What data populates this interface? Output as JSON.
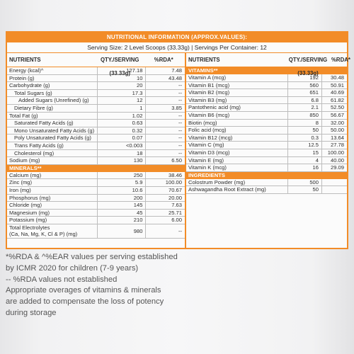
{
  "header": {
    "title": "NUTRITIONAL INFORMATION (APPROX.VALUES):",
    "serving": "Serving Size: 2 Level Scoops (33.33g) | Servings Per Container: 12"
  },
  "left": {
    "col_headers": [
      "NUTRIENTS",
      "QTY./SERVING (33.33g)",
      "%RDA*"
    ],
    "nutrients": [
      {
        "name": "Energy (kcal)^",
        "qty": "127.18",
        "rda": "7.48",
        "indent": 0
      },
      {
        "name": "Protein (g)",
        "qty": "10",
        "rda": "43.48",
        "indent": 0
      },
      {
        "name": "Carbohydrate (g)",
        "qty": "20",
        "rda": "--",
        "indent": 0
      },
      {
        "name": "Total Sugars (g)",
        "qty": "17.3",
        "rda": "--",
        "indent": 1
      },
      {
        "name": "Added Sugars (Unrefined) (g)",
        "qty": "12",
        "rda": "--",
        "indent": 2
      },
      {
        "name": "Dietary Fibre (g)",
        "qty": "1",
        "rda": "3.85",
        "indent": 1
      },
      {
        "name": "Total Fat (g)",
        "qty": "1.02",
        "rda": "--",
        "indent": 0
      },
      {
        "name": "Saturated Fatty Acids (g)",
        "qty": "0.63",
        "rda": "--",
        "indent": 1
      },
      {
        "name": "Mono Unsaturated Fatty Acids (g)",
        "qty": "0.32",
        "rda": "--",
        "indent": 1
      },
      {
        "name": "Poly Unsaturated Fatty Acids (g)",
        "qty": "0.07",
        "rda": "--",
        "indent": 1
      },
      {
        "name": "Trans Fatty Acids (g)",
        "qty": "<0.003",
        "rda": "--",
        "indent": 1
      },
      {
        "name": "Cholesterol (mg)",
        "qty": "18",
        "rda": "--",
        "indent": 1
      },
      {
        "name": "Sodium (mg)",
        "qty": "130",
        "rda": "6.50",
        "indent": 0
      }
    ],
    "minerals_label": "MINERALS**",
    "minerals": [
      {
        "name": "Calcium (mg)",
        "qty": "250",
        "rda": "38.46"
      },
      {
        "name": "Zinc (mg)",
        "qty": "5.9",
        "rda": "100.00"
      },
      {
        "name": "Iron (mg)",
        "qty": "10.6",
        "rda": "70.67"
      },
      {
        "name": "Phosphorus (mg)",
        "qty": "200",
        "rda": "20.00"
      },
      {
        "name": "Chloride (mg)",
        "qty": "145",
        "rda": "7.63"
      },
      {
        "name": "Magnesium (mg)",
        "qty": "45",
        "rda": "25.71"
      },
      {
        "name": "Potassium (mg)",
        "qty": "210",
        "rda": "6.00"
      }
    ],
    "electrolytes": {
      "line1": "Total Electrolytes",
      "line2": "(Ca, Na, Mg, K, Cl & P) (mg)",
      "qty": "980",
      "rda": "--"
    }
  },
  "right": {
    "col_headers": [
      "NUTRIENTS",
      "QTY./SERVING (33.33g)",
      "%RDA*"
    ],
    "vitamins_label": "VITAMINS**",
    "vitamins": [
      {
        "name": "Vitamin A (mcg)",
        "qty": "192",
        "rda": "30.48"
      },
      {
        "name": "Vitamin B1 (mcg)",
        "qty": "560",
        "rda": "50.91"
      },
      {
        "name": "Vitamin B2 (mcg)",
        "qty": "651",
        "rda": "40.69"
      },
      {
        "name": "Vitamin B3 (mg)",
        "qty": "6.8",
        "rda": "61.82"
      },
      {
        "name": "Pantothenic acid (mg)",
        "qty": "2.1",
        "rda": "52.50"
      },
      {
        "name": "Vitamin B6 (mcg)",
        "qty": "850",
        "rda": "56.67"
      },
      {
        "name": "Biotin (mcg)",
        "qty": "8",
        "rda": "32.00"
      },
      {
        "name": "Folic acid (mcg)",
        "qty": "50",
        "rda": "50.00"
      },
      {
        "name": "Vitamin B12 (mcg)",
        "qty": "0.3",
        "rda": "13.64"
      },
      {
        "name": "Vitamin C (mg)",
        "qty": "12.5",
        "rda": "27.78"
      },
      {
        "name": "Vitamin D3 (mcg)",
        "qty": "15",
        "rda": "100.00"
      },
      {
        "name": "Vitamin E (mg)",
        "qty": "4",
        "rda": "40.00"
      },
      {
        "name": "Vitamin K (mcg)",
        "qty": "16",
        "rda": "29.09"
      }
    ],
    "ingredients_label": "INGREDIENTS",
    "ingredients": [
      {
        "name": "Colostrum Powder (mg)",
        "qty": "500",
        "rda": ""
      },
      {
        "name": "Ashwagandha Root Extract (mg)",
        "qty": "50",
        "rda": ""
      }
    ]
  },
  "notes": [
    "*%RDA & ^%EAR values per serving established",
    "by ICMR 2020 for children (7-9 years)",
    "-- %RDA values not established",
    "Appropriate overages of vitamins & minerals",
    "are added to compensate the loss of potency",
    "during storage"
  ],
  "colors": {
    "accent": "#f28c28",
    "grid": "#bdbdbd"
  }
}
